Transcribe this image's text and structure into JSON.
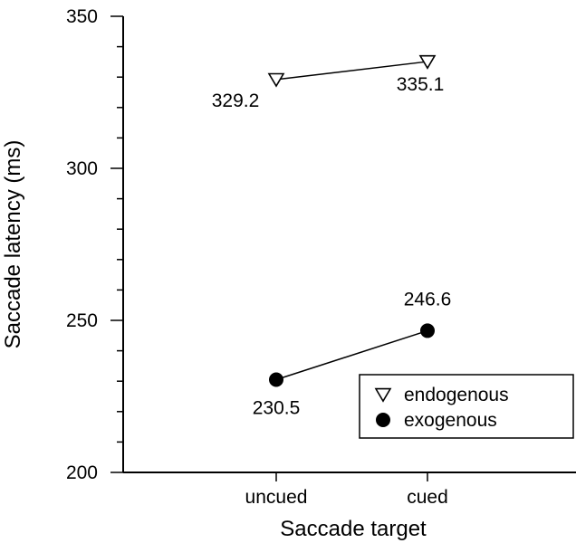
{
  "chart_data": {
    "type": "line",
    "title": "",
    "xlabel": "Saccade target",
    "ylabel": "Saccade latency (ms)",
    "categories": [
      "uncued",
      "cued"
    ],
    "ylim": [
      200,
      350
    ],
    "yticks": [
      200,
      250,
      300,
      350
    ],
    "y_minor_step": 10,
    "grid": false,
    "legend_position": "bottom-right",
    "series": [
      {
        "name": "endogenous",
        "marker": "open-triangle-down",
        "values": [
          329.2,
          335.1
        ],
        "labels": [
          "329.2",
          "335.1"
        ],
        "color": "#000000"
      },
      {
        "name": "exogenous",
        "marker": "filled-circle",
        "values": [
          230.5,
          246.6
        ],
        "labels": [
          "230.5",
          "246.6"
        ],
        "color": "#000000"
      }
    ]
  }
}
